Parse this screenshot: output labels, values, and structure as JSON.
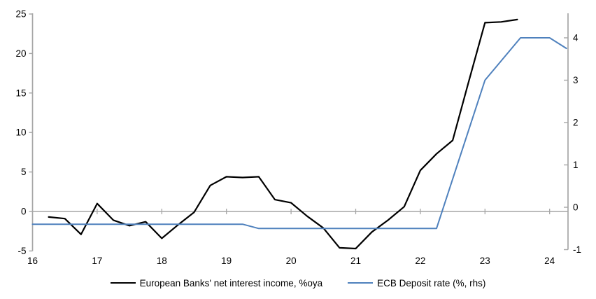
{
  "chart_data": {
    "type": "line",
    "title": "",
    "xlabel": "",
    "ylabel_left": "",
    "ylabel_right": "",
    "grid": false,
    "zero_line": true,
    "legend_position": "bottom",
    "x_axis": {
      "labels": [
        "16",
        "17",
        "18",
        "19",
        "20",
        "21",
        "22",
        "23",
        "24"
      ],
      "label_years": [
        16,
        17,
        18,
        19,
        20,
        21,
        22,
        23,
        24
      ],
      "zero_line_tick_years": [
        17,
        18,
        19,
        20,
        21,
        22,
        23,
        24
      ],
      "range": [
        16,
        24.28
      ]
    },
    "left_axis": {
      "ticks": [
        25,
        20,
        15,
        10,
        5,
        0,
        -5
      ],
      "range": [
        -5,
        25
      ]
    },
    "right_axis": {
      "ticks": [
        4,
        3,
        2,
        1,
        0,
        -1
      ],
      "range": [
        -1.03,
        4.58
      ]
    },
    "series": [
      {
        "name": "European Banks' net interest income, %oya",
        "axis": "left",
        "color": "#000000",
        "width": 2.2,
        "points": [
          [
            16.25,
            -0.7
          ],
          [
            16.5,
            -0.9
          ],
          [
            16.75,
            -2.9
          ],
          [
            17.0,
            1.0
          ],
          [
            17.25,
            -1.1
          ],
          [
            17.5,
            -1.8
          ],
          [
            17.75,
            -1.3
          ],
          [
            18.0,
            -3.4
          ],
          [
            18.25,
            -1.7
          ],
          [
            18.5,
            -0.1
          ],
          [
            18.75,
            3.3
          ],
          [
            19.0,
            4.4
          ],
          [
            19.25,
            4.3
          ],
          [
            19.5,
            4.4
          ],
          [
            19.75,
            1.5
          ],
          [
            20.0,
            1.1
          ],
          [
            20.25,
            -0.6
          ],
          [
            20.5,
            -2.1
          ],
          [
            20.75,
            -4.6
          ],
          [
            21.0,
            -4.7
          ],
          [
            21.25,
            -2.6
          ],
          [
            21.5,
            -1.1
          ],
          [
            21.75,
            0.6
          ],
          [
            22.0,
            5.2
          ],
          [
            22.25,
            7.3
          ],
          [
            22.5,
            9.0
          ],
          [
            22.75,
            16.5
          ],
          [
            23.0,
            23.9
          ],
          [
            23.25,
            24.0
          ],
          [
            23.5,
            24.3
          ]
        ]
      },
      {
        "name": "ECB Deposit rate (%, rhs)",
        "axis": "right",
        "color": "#4f81bd",
        "width": 2,
        "points": [
          [
            16.0,
            -0.4
          ],
          [
            19.25,
            -0.4
          ],
          [
            19.5,
            -0.5
          ],
          [
            22.25,
            -0.5
          ],
          [
            23.0,
            3.0
          ],
          [
            23.55,
            4.0
          ],
          [
            24.0,
            4.0
          ],
          [
            24.26,
            3.75
          ]
        ]
      }
    ],
    "colors": {
      "axis_line": "#a6a6a6",
      "zero_line": "#a6a6a6",
      "label_text": "#000000",
      "background": "#ffffff"
    }
  }
}
